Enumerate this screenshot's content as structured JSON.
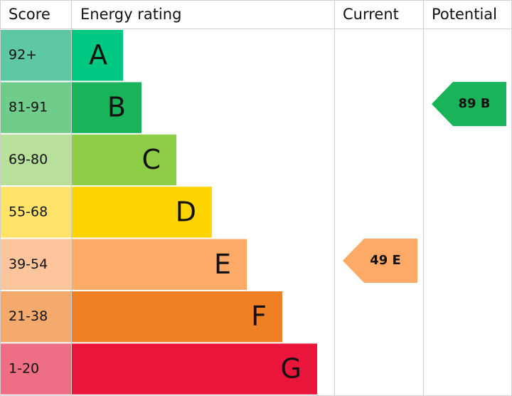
{
  "header": {
    "score": "Score",
    "rating": "Energy rating",
    "current": "Current",
    "potential": "Potential"
  },
  "rows": [
    {
      "score": "92+",
      "letter": "A"
    },
    {
      "score": "81-91",
      "letter": "B"
    },
    {
      "score": "69-80",
      "letter": "C"
    },
    {
      "score": "55-68",
      "letter": "D"
    },
    {
      "score": "39-54",
      "letter": "E"
    },
    {
      "score": "21-38",
      "letter": "F"
    },
    {
      "score": "1-20",
      "letter": "G"
    }
  ],
  "current": {
    "label": "49 E"
  },
  "potential": {
    "label": "89 B"
  }
}
